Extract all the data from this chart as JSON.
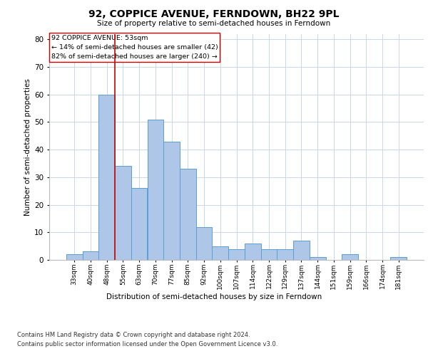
{
  "title_line1": "92, COPPICE AVENUE, FERNDOWN, BH22 9PL",
  "title_line2": "Size of property relative to semi-detached houses in Ferndown",
  "xlabel": "Distribution of semi-detached houses by size in Ferndown",
  "ylabel": "Number of semi-detached properties",
  "categories": [
    "33sqm",
    "40sqm",
    "48sqm",
    "55sqm",
    "63sqm",
    "70sqm",
    "77sqm",
    "85sqm",
    "92sqm",
    "100sqm",
    "107sqm",
    "114sqm",
    "122sqm",
    "129sqm",
    "137sqm",
    "144sqm",
    "151sqm",
    "159sqm",
    "166sqm",
    "174sqm",
    "181sqm"
  ],
  "values": [
    2,
    3,
    60,
    34,
    26,
    51,
    43,
    33,
    12,
    5,
    4,
    6,
    4,
    4,
    7,
    1,
    0,
    2,
    0,
    0,
    1
  ],
  "bar_color": "#aec6e8",
  "bar_edge_color": "#5a9fd4",
  "vline_pos": 2.5,
  "vline_color": "#cc0000",
  "annotation_title": "92 COPPICE AVENUE: 53sqm",
  "annotation_line1": "← 14% of semi-detached houses are smaller (42)",
  "annotation_line2": "82% of semi-detached houses are larger (240) →",
  "annotation_box_color": "#ffffff",
  "annotation_box_edge": "#cc0000",
  "ylim": [
    0,
    82
  ],
  "yticks": [
    0,
    10,
    20,
    30,
    40,
    50,
    60,
    70,
    80
  ],
  "footer_line1": "Contains HM Land Registry data © Crown copyright and database right 2024.",
  "footer_line2": "Contains public sector information licensed under the Open Government Licence v3.0.",
  "background_color": "#ffffff",
  "grid_color": "#c8d8e8"
}
